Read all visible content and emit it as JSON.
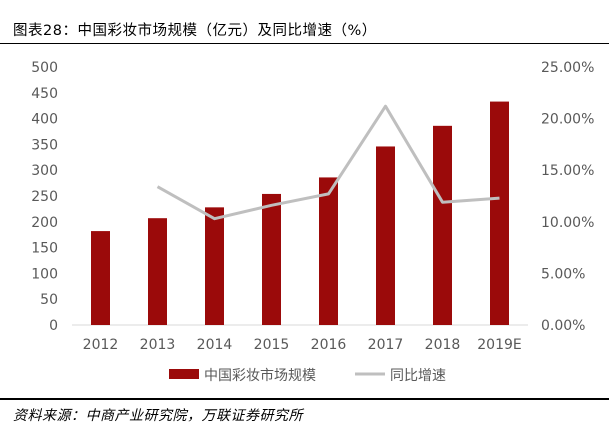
{
  "header": {
    "title": "图表28：中国彩妆市场规模（亿元）及同比增速（%）"
  },
  "footer": {
    "source": "资料来源：中商产业研究院，万联证券研究所"
  },
  "chart_data": {
    "type": "bar",
    "title": "图表28：中国彩妆市场规模（亿元）及同比增速（%）",
    "categories": [
      "2012",
      "2013",
      "2014",
      "2015",
      "2016",
      "2017",
      "2018",
      "2019E"
    ],
    "series": [
      {
        "name": "中国彩妆市场规模",
        "type": "bar",
        "axis": "left",
        "color": "#9b0a0a",
        "values": [
          182,
          207,
          228,
          254,
          286,
          346,
          386,
          433
        ]
      },
      {
        "name": "同比增速",
        "type": "line",
        "axis": "right",
        "color": "#bfbfbf",
        "values": [
          null,
          13.4,
          10.3,
          11.6,
          12.7,
          21.2,
          11.9,
          12.3
        ]
      }
    ],
    "y_left": {
      "min": 0,
      "max": 500,
      "step": 50,
      "tick_labels": [
        "0",
        "50",
        "100",
        "150",
        "200",
        "250",
        "300",
        "350",
        "400",
        "450",
        "500"
      ]
    },
    "y_right": {
      "min": 0,
      "max": 25,
      "step": 5,
      "tick_labels": [
        "0.00%",
        "5.00%",
        "10.00%",
        "15.00%",
        "20.00%",
        "25.00%"
      ]
    },
    "legend": {
      "position": "bottom",
      "items": [
        "中国彩妆市场规模",
        "同比增速"
      ]
    },
    "grid": false
  }
}
